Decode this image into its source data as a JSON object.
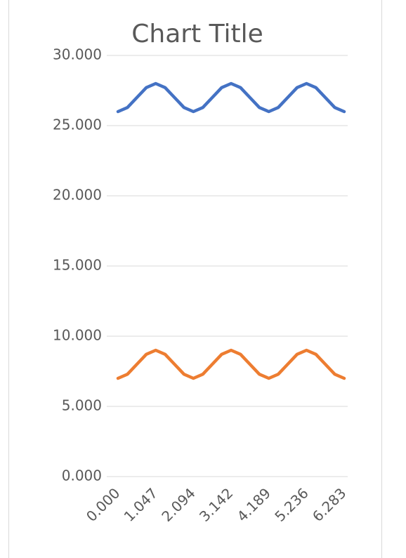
{
  "chart_data": {
    "type": "line",
    "title": "Chart Title",
    "categories": [
      "0.000",
      null,
      null,
      null,
      "1.047",
      null,
      null,
      null,
      "2.094",
      null,
      null,
      null,
      "3.142",
      null,
      null,
      null,
      "4.189",
      null,
      null,
      null,
      "5.236",
      null,
      null,
      null,
      "6.283"
    ],
    "series": [
      {
        "color": "#4472c4",
        "values": [
          26,
          26.293,
          27,
          27.707,
          28,
          27.707,
          27,
          26.293,
          26,
          26.293,
          27,
          27.707,
          28,
          27.707,
          27,
          26.293,
          26,
          26.293,
          27,
          27.707,
          28,
          27.707,
          27,
          26.293,
          26
        ]
      },
      {
        "color": "#ed7d31",
        "values": [
          7,
          7.293,
          8,
          8.707,
          9,
          8.707,
          8,
          7.293,
          7,
          7.293,
          8,
          8.707,
          9,
          8.707,
          8,
          7.293,
          7,
          7.293,
          8,
          8.707,
          9,
          8.707,
          8,
          7.293,
          7
        ]
      }
    ],
    "ylim": [
      0,
      30
    ],
    "yticks": [
      {
        "value": 0,
        "label": "0.000"
      },
      {
        "value": 5,
        "label": "5.000"
      },
      {
        "value": 10,
        "label": "10.000"
      },
      {
        "value": 15,
        "label": "15.000"
      },
      {
        "value": 20,
        "label": "20.000"
      },
      {
        "value": 25,
        "label": "25.000"
      },
      {
        "value": 30,
        "label": "30.000"
      }
    ],
    "grid": true
  }
}
